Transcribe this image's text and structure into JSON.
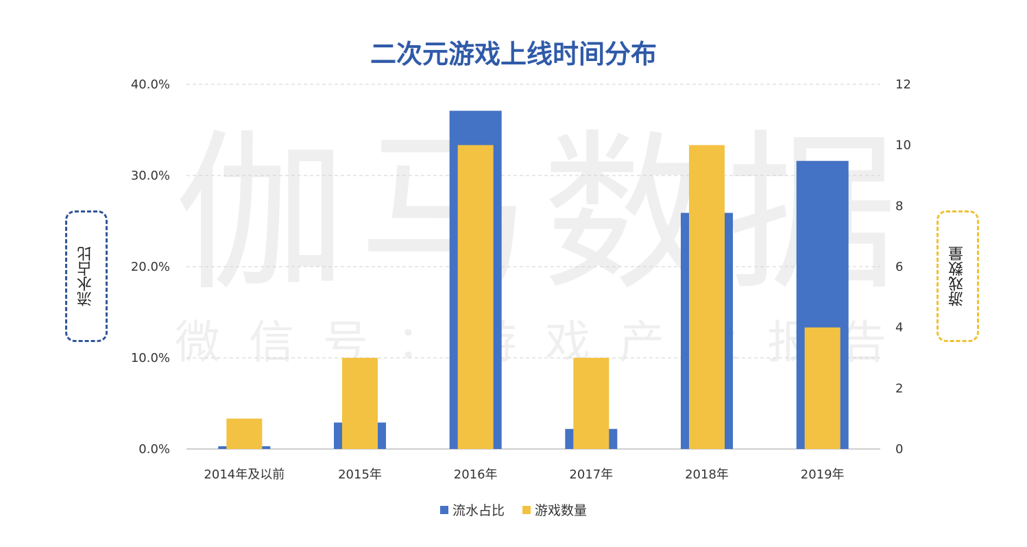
{
  "watermark": {
    "main": "伽马数据",
    "sub": "微信号：游戏产业报告"
  },
  "chart_data": {
    "type": "bar",
    "title": "二次元游戏上线时间分布",
    "categories": [
      "2014年及以前",
      "2015年",
      "2016年",
      "2017年",
      "2018年",
      "2019年"
    ],
    "series": [
      {
        "name": "流水占比",
        "axis": "left",
        "color": "#4472c4",
        "values": [
          0.3,
          2.9,
          37.1,
          2.2,
          25.9,
          31.6
        ]
      },
      {
        "name": "游戏数量",
        "axis": "right",
        "color": "#f4c242",
        "values": [
          1,
          3,
          10,
          3,
          10,
          4
        ]
      }
    ],
    "ylabel": "流水占比",
    "y2label": "游戏数量",
    "ylim": [
      0,
      40
    ],
    "y2lim": [
      0,
      12
    ],
    "yticks": [
      "0.0%",
      "10.0%",
      "20.0%",
      "30.0%",
      "40.0%"
    ],
    "y2ticks": [
      "0",
      "2",
      "4",
      "6",
      "8",
      "10",
      "12"
    ],
    "grid": true,
    "legend_position": "bottom"
  }
}
